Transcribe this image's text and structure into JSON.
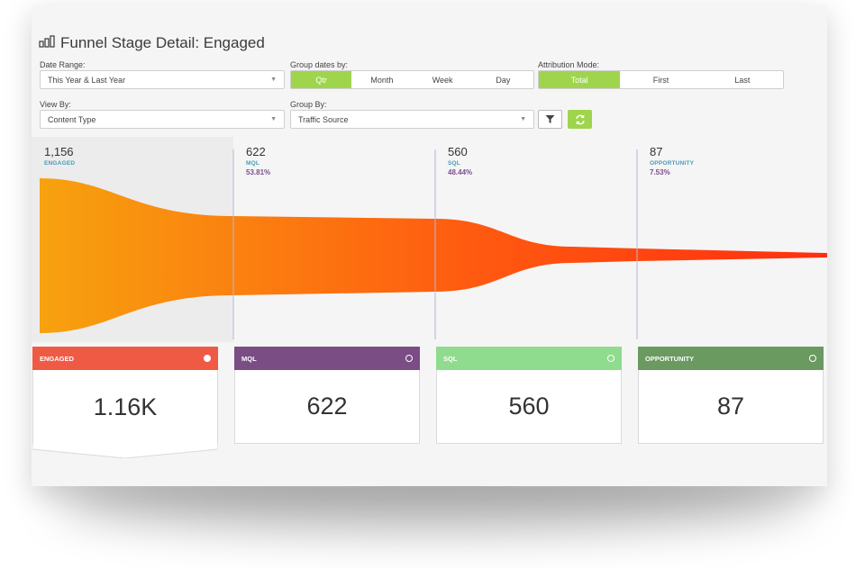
{
  "header": {
    "title": "Funnel Stage Detail: Engaged",
    "icon": "bar-chart-icon"
  },
  "filters": {
    "date_range": {
      "label": "Date Range:",
      "value": "This Year & Last Year"
    },
    "group_dates": {
      "label": "Group dates by:",
      "options": [
        "Qtr",
        "Month",
        "Week",
        "Day"
      ],
      "selected": "Qtr"
    },
    "attribution": {
      "label": "Attribution Mode:",
      "options": [
        "Total",
        "First",
        "Last"
      ],
      "selected": "Total"
    },
    "view_by": {
      "label": "View By:",
      "value": "Content Type"
    },
    "group_by": {
      "label": "Group By:",
      "value": "Traffic Source"
    }
  },
  "stages": [
    {
      "count": "1,156",
      "code": "ENGAGED",
      "pct": "",
      "code_color": "#4a9bb8"
    },
    {
      "count": "622",
      "code": "MQL",
      "pct": "53.81%",
      "code_color": "#4a9bb8"
    },
    {
      "count": "560",
      "code": "SQL",
      "pct": "48.44%",
      "code_color": "#4a9bb8"
    },
    {
      "count": "87",
      "code": "OPPORTUNITY",
      "pct": "7.53%",
      "code_color": "#4a9bb8"
    }
  ],
  "tiles": [
    {
      "label": "ENGAGED",
      "value": "1.16K",
      "color": "#ef5a45",
      "selected": true
    },
    {
      "label": "MQL",
      "value": "622",
      "color": "#7a4d85",
      "selected": false
    },
    {
      "label": "SQL",
      "value": "560",
      "color": "#8fdc8f",
      "selected": false
    },
    {
      "label": "OPPORTUNITY",
      "value": "87",
      "color": "#6a9a60",
      "selected": false
    }
  ],
  "colors": {
    "accent": "#9fd54c",
    "funnel_start": "#f7a20f",
    "funnel_end": "#ff3d12"
  }
}
